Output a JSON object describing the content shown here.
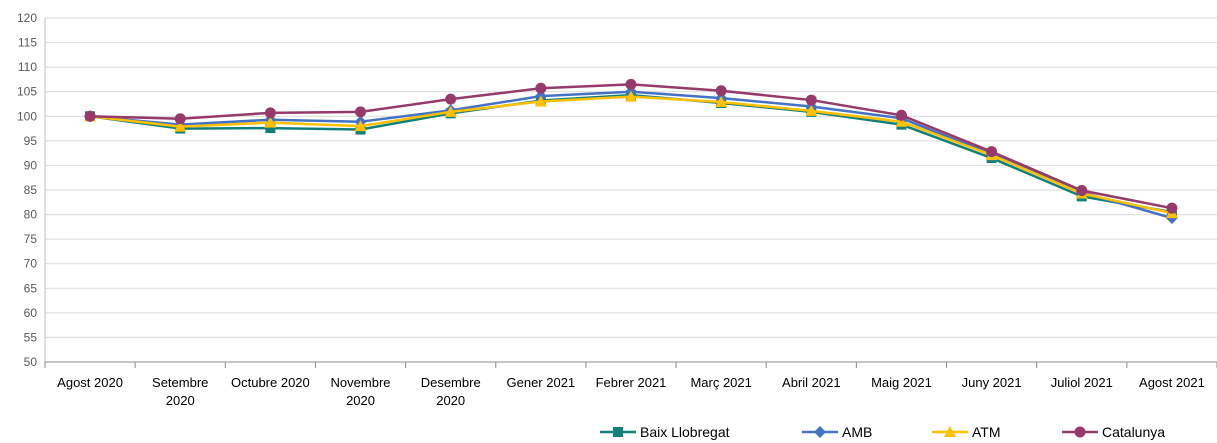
{
  "chart_data": {
    "type": "line",
    "title": "",
    "xlabel": "",
    "ylabel": "",
    "categories": [
      [
        "Agost 2020"
      ],
      [
        "Setembre",
        "2020"
      ],
      [
        "Octubre 2020"
      ],
      [
        "Novembre",
        "2020"
      ],
      [
        "Desembre",
        "2020"
      ],
      [
        "Gener 2021"
      ],
      [
        "Febrer 2021"
      ],
      [
        "Març 2021"
      ],
      [
        "Abril 2021"
      ],
      [
        "Maig 2021"
      ],
      [
        "Juny 2021"
      ],
      [
        "Juliol 2021"
      ],
      [
        "Agost 2021"
      ]
    ],
    "ylim": [
      50,
      120
    ],
    "yticks": [
      50,
      55,
      60,
      65,
      70,
      75,
      80,
      85,
      90,
      95,
      100,
      105,
      110,
      115,
      120
    ],
    "grid": true,
    "legend_position": "bottom-right",
    "series": [
      {
        "name": "Baix Llobregat",
        "color": "#12807a",
        "marker": "square",
        "values": [
          100.0,
          97.5,
          97.6,
          97.3,
          100.6,
          103.2,
          104.3,
          102.7,
          100.9,
          98.3,
          91.5,
          83.7,
          80.5
        ]
      },
      {
        "name": "AMB",
        "color": "#4472c4",
        "marker": "diamond",
        "values": [
          100.0,
          98.3,
          99.3,
          98.9,
          101.2,
          104.1,
          105.0,
          103.7,
          102.0,
          99.6,
          92.3,
          84.5,
          79.3
        ]
      },
      {
        "name": "ATM",
        "color": "#ffc000",
        "marker": "triangle",
        "values": [
          100.0,
          97.9,
          98.7,
          98.0,
          100.9,
          103.0,
          104.0,
          102.9,
          101.1,
          98.9,
          92.1,
          84.3,
          80.3
        ]
      },
      {
        "name": "Catalunya",
        "color": "#953a6b",
        "marker": "circle",
        "values": [
          100.0,
          99.5,
          100.7,
          100.9,
          103.5,
          105.7,
          106.5,
          105.2,
          103.3,
          100.2,
          92.8,
          84.9,
          81.3
        ]
      }
    ]
  }
}
